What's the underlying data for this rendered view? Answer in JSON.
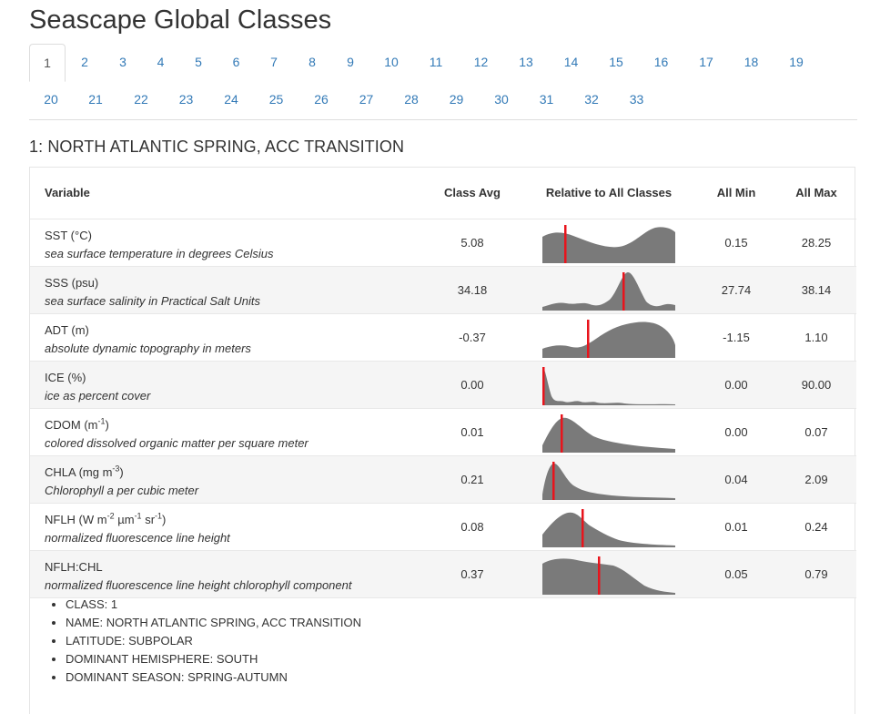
{
  "page": {
    "title": "Seascape Global Classes"
  },
  "tabs": [
    "1",
    "2",
    "3",
    "4",
    "5",
    "6",
    "7",
    "8",
    "9",
    "10",
    "11",
    "12",
    "13",
    "14",
    "15",
    "16",
    "17",
    "18",
    "19",
    "20",
    "21",
    "22",
    "23",
    "24",
    "25",
    "26",
    "27",
    "28",
    "29",
    "30",
    "31",
    "32",
    "33"
  ],
  "active_tab": "1",
  "section": {
    "title": "1: NORTH ATLANTIC SPRING, ACC TRANSITION"
  },
  "table": {
    "headers": {
      "variable": "Variable",
      "class_avg": "Class Avg",
      "relative": "Relative to All Classes",
      "all_min": "All Min",
      "all_max": "All Max"
    },
    "marker_color": "#e8141c",
    "density_color": "#7a7a7a",
    "rows": [
      {
        "name": "SST (°C)",
        "description": "sea surface temperature in degrees Celsius",
        "avg": "5.08",
        "min": "0.15",
        "max": "28.25"
      },
      {
        "name": "SSS (psu)",
        "description": "sea surface salinity in Practical Salt Units",
        "avg": "34.18",
        "min": "27.74",
        "max": "38.14"
      },
      {
        "name": "ADT (m)",
        "description": "absolute dynamic topography in meters",
        "avg": "-0.37",
        "min": "-1.15",
        "max": "1.10"
      },
      {
        "name": "ICE (%)",
        "description": "ice as percent cover",
        "avg": "0.00",
        "min": "0.00",
        "max": "90.00"
      },
      {
        "name_base": "CDOM (m",
        "name_tail": ")",
        "description": "colored dissolved organic matter per square meter",
        "avg": "0.01",
        "min": "0.00",
        "max": "0.07"
      },
      {
        "name_base": "CHLA (mg m",
        "name_tail": ")",
        "description": "Chlorophyll a per cubic meter",
        "avg": "0.21",
        "min": "0.04",
        "max": "2.09"
      },
      {
        "name_base": "NFLH (W m",
        "name_mid1": " µm",
        "name_mid2": " sr",
        "name_tail": ")",
        "description": "normalized fluorescence line height",
        "avg": "0.08",
        "min": "0.01",
        "max": "0.24"
      },
      {
        "name": "NFLH:CHL",
        "description": "normalized fluorescence line height chlorophyll component",
        "avg": "0.37",
        "min": "0.05",
        "max": "0.79"
      }
    ]
  },
  "details": [
    "CLASS: 1",
    "NAME: NORTH ATLANTIC SPRING, ACC TRANSITION",
    "LATITUDE: SUBPOLAR",
    "DOMINANT HEMISPHERE: SOUTH",
    "DOMINANT SEASON: SPRING-AUTUMN"
  ]
}
